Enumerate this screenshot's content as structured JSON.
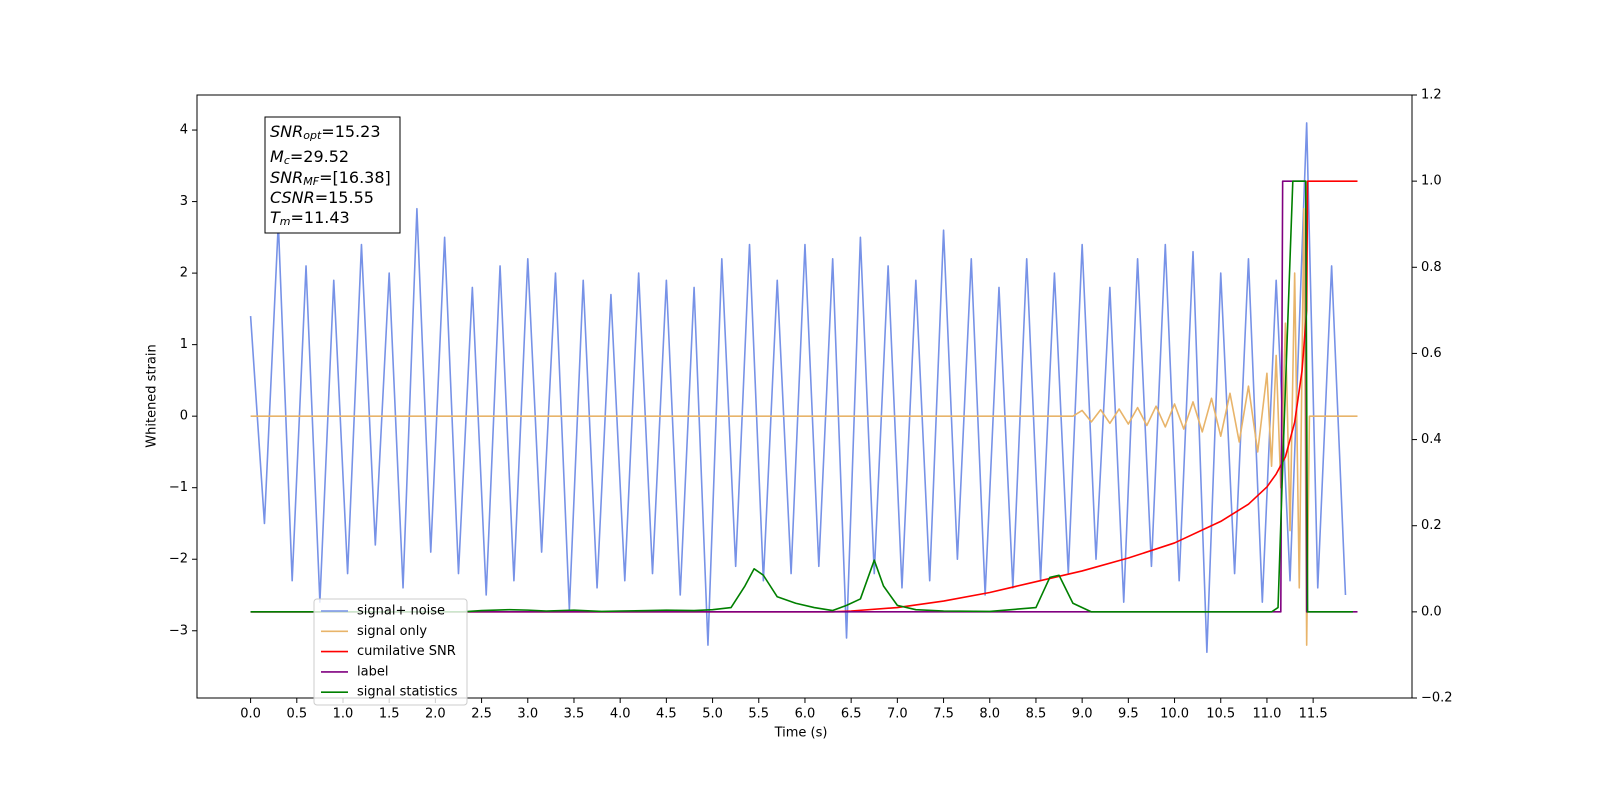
{
  "chart_data": {
    "type": "line",
    "x_label": "Time (s)",
    "y_label": "Whitened strain",
    "xlim": [
      -0.58,
      12.57
    ],
    "ylim": [
      -3.94,
      4.49
    ],
    "y2lim": [
      -0.2,
      1.2
    ],
    "xticks": [
      {
        "value": 0,
        "label": "0.0"
      },
      0.5,
      {
        "value": 1,
        "label": "1.0"
      },
      1.5,
      {
        "value": 2,
        "label": "2.0"
      },
      2.5,
      {
        "value": 3,
        "label": "3.0"
      },
      3.5,
      {
        "value": 4,
        "label": "4.0"
      },
      4.5,
      {
        "value": 5,
        "label": "5.0"
      },
      5.5,
      {
        "value": 6,
        "label": "6.0"
      },
      6.5,
      {
        "value": 7,
        "label": "7.0"
      },
      7.5,
      {
        "value": 8,
        "label": "8.0"
      },
      8.5,
      {
        "value": 9,
        "label": "9.0"
      },
      9.5,
      {
        "value": 10,
        "label": "10.0"
      },
      10.5,
      {
        "value": 11,
        "label": "11.0"
      },
      11.5
    ],
    "yticks": [
      {
        "value": -3,
        "label": "−3"
      },
      {
        "value": -2,
        "label": "−2"
      },
      {
        "value": -1,
        "label": "−1"
      },
      0,
      1,
      2,
      3,
      4
    ],
    "y2ticks": [
      {
        "value": -0.2,
        "label": "−0.2"
      },
      {
        "value": 0,
        "label": "0.0"
      },
      0.2,
      0.4,
      0.6,
      0.8,
      {
        "value": 1,
        "label": "1.0"
      },
      1.2
    ],
    "legend_loc": "lower left",
    "annotations": [
      {
        "text": "SNR",
        "sub": "opt",
        "rest": "=15.23"
      },
      {
        "text": "M",
        "sub": "c",
        "rest": "=29.52"
      },
      {
        "text": "SNR",
        "sub": "MF",
        "rest": "=[16.38]"
      },
      {
        "text": "CSNR",
        "rest": "=15.55"
      },
      {
        "text": "T",
        "sub": "m",
        "rest": "=11.43"
      }
    ],
    "series": [
      {
        "name": "signal+ noise",
        "color": "#7792e7",
        "x": [
          0,
          0.15,
          0.3,
          0.45,
          0.6,
          0.75,
          0.9,
          1.05,
          1.2,
          1.35,
          1.5,
          1.65,
          1.8,
          1.95,
          2.1,
          2.25,
          2.4,
          2.55,
          2.7,
          2.85,
          3,
          3.15,
          3.3,
          3.45,
          3.6,
          3.75,
          3.9,
          4.05,
          4.2,
          4.35,
          4.5,
          4.65,
          4.8,
          4.95,
          5.1,
          5.25,
          5.4,
          5.55,
          5.7,
          5.85,
          6,
          6.15,
          6.3,
          6.45,
          6.6,
          6.75,
          6.9,
          7.05,
          7.2,
          7.35,
          7.5,
          7.65,
          7.8,
          7.95,
          8.1,
          8.25,
          8.4,
          8.55,
          8.7,
          8.85,
          9,
          9.15,
          9.3,
          9.45,
          9.6,
          9.75,
          9.9,
          10.05,
          10.2,
          10.35,
          10.5,
          10.65,
          10.8,
          10.95,
          11.1,
          11.25,
          11.43,
          11.55,
          11.7,
          11.85
        ],
        "values": [
          1.4,
          -1.5,
          2.7,
          -2.3,
          2.1,
          -2.6,
          1.9,
          -2.2,
          2.4,
          -1.8,
          2.0,
          -2.4,
          2.9,
          -1.9,
          2.5,
          -2.2,
          1.8,
          -2.5,
          2.1,
          -2.3,
          2.2,
          -1.9,
          2.0,
          -2.7,
          1.9,
          -2.4,
          1.7,
          -2.3,
          2.0,
          -2.2,
          1.9,
          -2.5,
          1.8,
          -3.2,
          2.2,
          -2.1,
          2.4,
          -2.3,
          1.9,
          -2.2,
          2.4,
          -2.1,
          2.2,
          -3.1,
          2.5,
          -2.2,
          2.1,
          -2.4,
          1.9,
          -2.3,
          2.6,
          -2.0,
          2.2,
          -2.5,
          1.8,
          -2.4,
          2.2,
          -2.3,
          2.0,
          -2.2,
          2.4,
          -2.0,
          1.8,
          -2.6,
          2.2,
          -2.1,
          2.4,
          -2.3,
          2.3,
          -3.3,
          2.0,
          -2.2,
          2.2,
          -2.6,
          1.9,
          -2.3,
          4.1,
          -2.4,
          2.1,
          -2.5
        ]
      },
      {
        "name": "signal only",
        "color": "#e8b46a",
        "x": [
          0,
          8.9,
          9.0,
          9.1,
          9.2,
          9.3,
          9.4,
          9.5,
          9.6,
          9.7,
          9.8,
          9.9,
          10.0,
          10.1,
          10.2,
          10.3,
          10.4,
          10.5,
          10.6,
          10.7,
          10.8,
          10.9,
          11.0,
          11.05,
          11.1,
          11.15,
          11.2,
          11.25,
          11.3,
          11.35,
          11.4,
          11.43,
          11.46,
          11.98
        ],
        "values": [
          0,
          0,
          0.08,
          -0.08,
          0.09,
          -0.1,
          0.1,
          -0.11,
          0.12,
          -0.13,
          0.14,
          -0.15,
          0.17,
          -0.18,
          0.2,
          -0.22,
          0.25,
          -0.28,
          0.32,
          -0.36,
          0.42,
          -0.5,
          0.6,
          -0.7,
          0.85,
          -1.0,
          1.3,
          -1.6,
          2.0,
          -2.4,
          2.9,
          -3.2,
          0,
          0
        ]
      },
      {
        "name": "cumilative SNR",
        "color": "#ff0000",
        "axis": "y2",
        "x": [
          0,
          6.3,
          6.5,
          7,
          7.5,
          8,
          8.5,
          9,
          9.5,
          10,
          10.5,
          10.8,
          11,
          11.1,
          11.2,
          11.3,
          11.38,
          11.43,
          11.44,
          11.98
        ],
        "values": [
          0,
          0,
          0.002,
          0.01,
          0.025,
          0.045,
          0.07,
          0.095,
          0.125,
          0.16,
          0.21,
          0.25,
          0.29,
          0.32,
          0.36,
          0.44,
          0.56,
          0.7,
          1.0,
          1.0
        ]
      },
      {
        "name": "label",
        "color": "#800080",
        "axis": "y2",
        "x": [
          0,
          11.15,
          11.17,
          11.42,
          11.43,
          11.98
        ],
        "values": [
          0,
          0,
          1,
          1,
          0,
          0
        ]
      },
      {
        "name": "signal statistics",
        "color": "#008000",
        "axis": "y2",
        "x": [
          0,
          2.3,
          2.5,
          2.8,
          3.0,
          3.2,
          3.5,
          3.8,
          4.0,
          4.3,
          4.5,
          4.8,
          5.0,
          5.2,
          5.35,
          5.45,
          5.55,
          5.7,
          5.9,
          6.1,
          6.3,
          6.45,
          6.6,
          6.75,
          6.85,
          7.0,
          7.2,
          7.5,
          8.0,
          8.5,
          8.65,
          8.75,
          8.9,
          9.1,
          11.05,
          11.12,
          11.18,
          11.28,
          11.42,
          11.44,
          11.93
        ],
        "values": [
          0,
          0,
          0.003,
          0.005,
          0.004,
          0.002,
          0.004,
          0.001,
          0.002,
          0.003,
          0.004,
          0.003,
          0.005,
          0.01,
          0.06,
          0.1,
          0.085,
          0.035,
          0.02,
          0.01,
          0.003,
          0.015,
          0.03,
          0.12,
          0.06,
          0.015,
          0.005,
          0.002,
          0.001,
          0.01,
          0.08,
          0.085,
          0.02,
          0,
          0,
          0.01,
          0.4,
          1.0,
          1.0,
          0,
          0
        ]
      }
    ]
  }
}
